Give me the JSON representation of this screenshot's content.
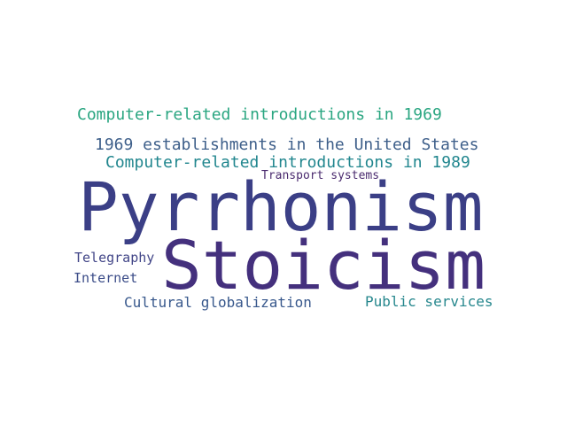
{
  "words": [
    {
      "key": "pyrrhonism",
      "text": "Pyrrhonism",
      "color": "#3b3f86"
    },
    {
      "key": "stoicism",
      "text": "Stoicism",
      "color": "#44307d"
    },
    {
      "key": "comp1969",
      "text": "Computer-related introductions in 1969",
      "color": "#2aa681"
    },
    {
      "key": "est1969",
      "text": "1969 establishments in the United States",
      "color": "#3e5f8a"
    },
    {
      "key": "comp1989",
      "text": "Computer-related introductions in 1989",
      "color": "#21868e"
    },
    {
      "key": "transport",
      "text": "Transport systems",
      "color": "#4a2a6e"
    },
    {
      "key": "telegraphy",
      "text": "Telegraphy",
      "color": "#414587"
    },
    {
      "key": "internet",
      "text": "Internet",
      "color": "#3b4c88"
    },
    {
      "key": "cultural",
      "text": "Cultural globalization",
      "color": "#38588c"
    },
    {
      "key": "public",
      "text": "Public services",
      "color": "#26878d"
    }
  ]
}
